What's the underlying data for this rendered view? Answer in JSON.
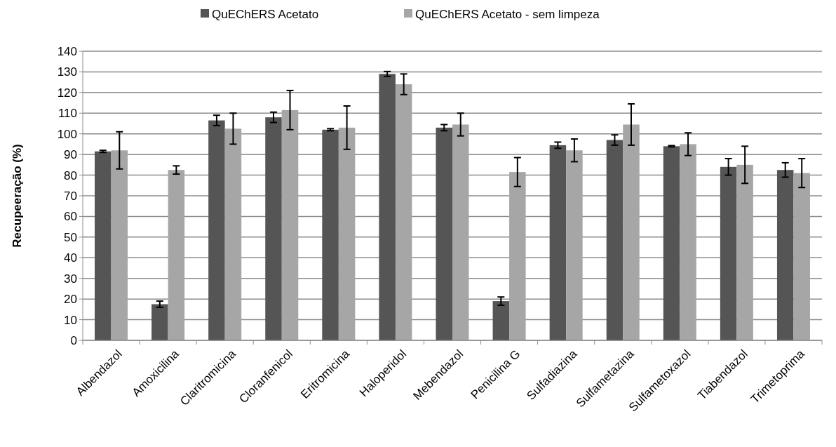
{
  "chart_data": {
    "type": "bar",
    "ylabel": "Recupeeração (%)",
    "categories": [
      "Albendazol",
      "Amoxicilina",
      "Claritromicina",
      "Cloranfenicol",
      "Eritromicina",
      "Haloperidol",
      "Mebendazol",
      "Penicilina G",
      "Sulfadiazina",
      "Sulfametazina",
      "Sulfametoxazol",
      "Tiabendazol",
      "Trimetoprima"
    ],
    "series": [
      {
        "name": "QuEChERS Acetato",
        "color": "#555555",
        "values": [
          91.5,
          17.5,
          106.5,
          108,
          102,
          129,
          103,
          19,
          94.5,
          97,
          94,
          84,
          82.5
        ],
        "errors": [
          0.5,
          1.5,
          2.5,
          2.5,
          0.5,
          1.2,
          1.5,
          2,
          1.5,
          2.5,
          0.3,
          4,
          3.5
        ]
      },
      {
        "name": "QuEChERS Acetato - sem limpeza",
        "color": "#a6a6a6",
        "values": [
          92,
          82.5,
          102.5,
          111.5,
          103,
          124,
          104.5,
          81.5,
          92,
          104.5,
          95,
          85,
          81
        ],
        "errors": [
          9,
          2,
          7.5,
          9.5,
          10.5,
          5,
          5.5,
          7,
          5.5,
          10,
          5.5,
          9,
          7
        ]
      }
    ],
    "ylim": [
      0,
      140
    ],
    "yticks": [
      0,
      10,
      20,
      30,
      40,
      50,
      60,
      70,
      80,
      90,
      100,
      110,
      120,
      130,
      140
    ],
    "grid": "y",
    "legend": "top"
  }
}
